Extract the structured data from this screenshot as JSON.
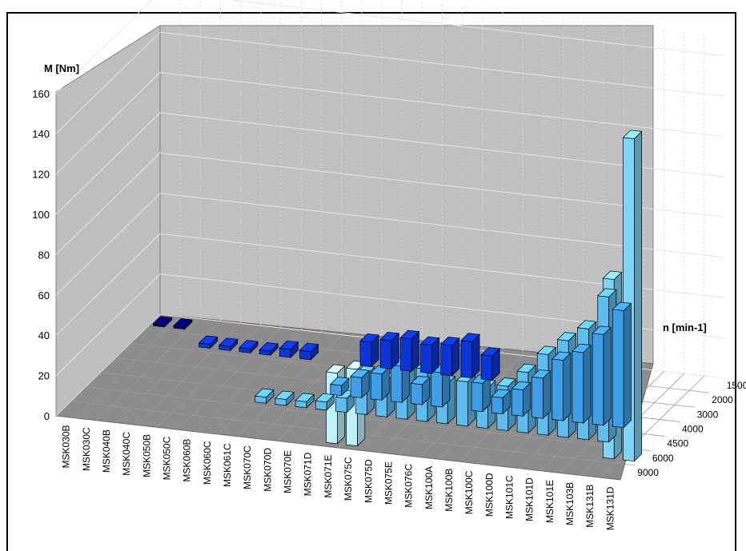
{
  "chart_data": {
    "type": "bar",
    "projection": "3d",
    "ylabel": "M [Nm]",
    "zlabel": "n [min-1]",
    "ylim": [
      0,
      160
    ],
    "yticks": [
      0,
      20,
      40,
      60,
      80,
      100,
      120,
      140,
      160
    ],
    "grid": true,
    "categories": [
      "MSK030B",
      "MSK030C",
      "MSK040B",
      "MSK040C",
      "MSK050B",
      "MSK050C",
      "MSK060B",
      "MSK060C",
      "MSK061C",
      "MSK070C",
      "MSK070D",
      "MSK070E",
      "MSK071D",
      "MSK071E",
      "MSK075C",
      "MSK075D",
      "MSK075E",
      "MSK076C",
      "MSK100A",
      "MSK100B",
      "MSK100C",
      "MSK100D",
      "MSK101C",
      "MSK101D",
      "MSK101E",
      "MSK103B",
      "MSK131B",
      "MSK131D"
    ],
    "series": [
      {
        "name": "1500",
        "color": "#bff3fb",
        "values": [
          null,
          null,
          null,
          null,
          null,
          null,
          null,
          null,
          null,
          null,
          null,
          null,
          null,
          35,
          38,
          null,
          null,
          null,
          null,
          null,
          null,
          null,
          null,
          null,
          null,
          null,
          null,
          null
        ]
      },
      {
        "name": "2000",
        "color": "#7fd5f5",
        "values": [
          null,
          null,
          null,
          null,
          null,
          null,
          null,
          null,
          null,
          null,
          null,
          null,
          null,
          null,
          null,
          null,
          null,
          null,
          null,
          null,
          null,
          null,
          null,
          null,
          null,
          null,
          89,
          160
        ]
      },
      {
        "name": "3000",
        "color": "#5fbef0",
        "values": [
          null,
          null,
          null,
          null,
          null,
          null,
          null,
          null,
          3,
          3,
          3,
          4,
          7,
          20,
          18,
          22,
          26,
          20,
          22,
          20,
          22,
          30,
          40,
          48,
          55,
          72,
          null,
          null
        ]
      },
      {
        "name": "4000",
        "color": "#3f9ee8",
        "values": [
          null,
          null,
          null,
          null,
          null,
          null,
          null,
          null,
          null,
          null,
          null,
          5,
          10,
          13,
          18,
          10,
          17,
          null,
          14,
          8,
          13,
          20,
          30,
          35,
          45,
          58,
          null,
          null
        ]
      },
      {
        "name": "4500",
        "color": "#1f6fe0",
        "values": [
          null,
          null,
          null,
          null,
          null,
          null,
          null,
          null,
          null,
          null,
          null,
          null,
          null,
          null,
          null,
          null,
          null,
          null,
          null,
          null,
          null,
          null,
          null,
          null,
          null,
          null,
          null,
          null
        ]
      },
      {
        "name": "6000",
        "color": "#0a36d8",
        "values": [
          null,
          null,
          null,
          2,
          2,
          2,
          2,
          4,
          4,
          null,
          null,
          12,
          14,
          16,
          14,
          15,
          18,
          12,
          null,
          null,
          null,
          null,
          null,
          null,
          null,
          null,
          null,
          null
        ]
      },
      {
        "name": "9000",
        "color": "#00007a",
        "values": [
          1,
          1,
          null,
          null,
          null,
          null,
          null,
          null,
          null,
          null,
          null,
          null,
          null,
          null,
          null,
          null,
          null,
          null,
          null,
          null,
          null,
          null,
          null,
          null,
          null,
          null,
          null,
          null
        ]
      }
    ]
  }
}
